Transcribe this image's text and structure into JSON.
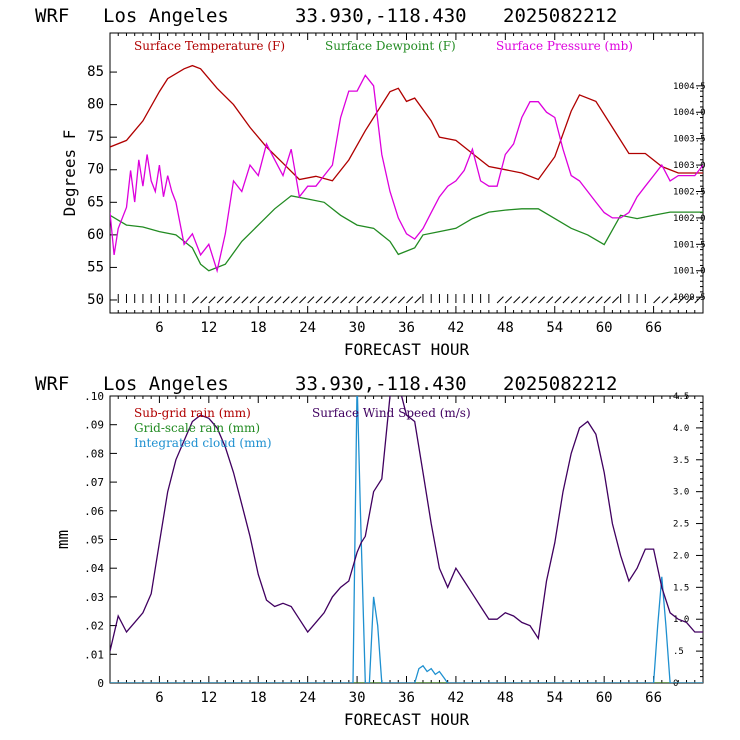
{
  "chart_data": [
    {
      "type": "line",
      "header": {
        "model": "WRF",
        "location": "Los Angeles",
        "coords": "33.930,-118.430",
        "run": "2025082212"
      },
      "xlabel": "FORECAST HOUR",
      "ylabel": "Degrees F",
      "x_ticks": [
        "6",
        "12",
        "18",
        "24",
        "30",
        "36",
        "42",
        "48",
        "54",
        "60",
        "66"
      ],
      "y_ticks": [
        "50",
        "55",
        "60",
        "65",
        "70",
        "75",
        "80",
        "85"
      ],
      "y2_ticks": [
        "1000.5",
        "1001.0",
        "1001.5",
        "1002.0",
        "1002.5",
        "1003.0",
        "1003.5",
        "1004.0",
        "1004.5"
      ],
      "xlim": [
        0,
        72
      ],
      "ylim": [
        48,
        91
      ],
      "y2lim": [
        1000.2,
        1005.5
      ],
      "series": [
        {
          "name": "Surface Temperature (F)",
          "color": "#b00000",
          "axis": "left",
          "x": [
            0,
            2,
            4,
            6,
            7,
            9,
            10,
            11,
            13,
            15,
            17,
            19,
            21,
            23,
            25,
            27,
            29,
            31,
            33,
            34,
            35,
            36,
            37,
            39,
            40,
            42,
            44,
            46,
            48,
            50,
            52,
            54,
            56,
            57,
            59,
            61,
            63,
            65,
            67,
            69,
            72
          ],
          "y": [
            73.5,
            74.5,
            77.5,
            82,
            84,
            85.5,
            86,
            85.5,
            82.5,
            80,
            76.5,
            73.5,
            71,
            68.5,
            69,
            68.3,
            71.5,
            76,
            80,
            82,
            82.5,
            80.5,
            81,
            77.5,
            75,
            74.5,
            72.5,
            70.5,
            70,
            69.5,
            68.5,
            72,
            79,
            81.5,
            80.5,
            76.5,
            72.5,
            72.5,
            70.5,
            69.5,
            69.5
          ]
        },
        {
          "name": "Surface Dewpoint (F)",
          "color": "#228b22",
          "axis": "left",
          "x": [
            0,
            2,
            4,
            6,
            8,
            10,
            11,
            12,
            14,
            16,
            18,
            20,
            22,
            24,
            26,
            28,
            30,
            32,
            34,
            35,
            36,
            37,
            38,
            40,
            42,
            44,
            46,
            48,
            50,
            52,
            54,
            56,
            58,
            60,
            62,
            64,
            66,
            68,
            72
          ],
          "y": [
            63,
            61.5,
            61.2,
            60.5,
            60,
            58,
            55.5,
            54.5,
            55.5,
            59,
            61.5,
            64,
            66,
            65.5,
            65,
            63,
            61.5,
            61,
            59,
            57,
            57.5,
            58,
            60,
            60.5,
            61,
            62.5,
            63.5,
            63.8,
            64,
            64,
            62.5,
            61,
            60,
            58.5,
            63,
            62.5,
            63,
            63.5,
            63.5
          ]
        },
        {
          "name": "Surface Pressure (mb)",
          "color": "#dd00dd",
          "axis": "right",
          "x": [
            0,
            0.5,
            1,
            2,
            2.5,
            3,
            3.5,
            4,
            4.5,
            5,
            5.5,
            6,
            6.5,
            7,
            7.5,
            8,
            9,
            10,
            11,
            12,
            13,
            14,
            15,
            16,
            17,
            18,
            19,
            20,
            21,
            22,
            23,
            24,
            25,
            26,
            27,
            28,
            29,
            30,
            31,
            32,
            33,
            34,
            35,
            36,
            37,
            38,
            39,
            40,
            41,
            42,
            43,
            44,
            45,
            46,
            47,
            48,
            49,
            50,
            51,
            52,
            53,
            54,
            55,
            56,
            57,
            58,
            59,
            60,
            61,
            62,
            63,
            64,
            65,
            66,
            67,
            68,
            69,
            70,
            71,
            72
          ],
          "y": [
            1002.1,
            1001.3,
            1001.8,
            1002.2,
            1002.9,
            1002.3,
            1003.1,
            1002.6,
            1003.2,
            1002.7,
            1002.5,
            1003.0,
            1002.4,
            1002.8,
            1002.5,
            1002.3,
            1001.5,
            1001.7,
            1001.3,
            1001.5,
            1001.0,
            1001.7,
            1002.7,
            1002.5,
            1003.0,
            1002.8,
            1003.4,
            1003.1,
            1002.8,
            1003.3,
            1002.4,
            1002.6,
            1002.6,
            1002.8,
            1003.0,
            1003.9,
            1004.4,
            1004.4,
            1004.7,
            1004.5,
            1003.2,
            1002.5,
            1002.0,
            1001.7,
            1001.6,
            1001.8,
            1002.1,
            1002.4,
            1002.6,
            1002.7,
            1002.9,
            1003.3,
            1002.7,
            1002.6,
            1002.6,
            1003.2,
            1003.4,
            1003.9,
            1004.2,
            1004.2,
            1004.0,
            1003.9,
            1003.3,
            1002.8,
            1002.7,
            1002.5,
            1002.3,
            1002.1,
            1002.0,
            1002.0,
            1002.1,
            1002.4,
            1002.6,
            1002.8,
            1003.0,
            1002.7,
            1002.8,
            1002.8,
            1002.8,
            1003.0
          ]
        }
      ]
    },
    {
      "type": "line",
      "header": {
        "model": "WRF",
        "location": "Los Angeles",
        "coords": "33.930,-118.430",
        "run": "2025082212"
      },
      "xlabel": "FORECAST HOUR",
      "ylabel": "mm",
      "x_ticks": [
        "6",
        "12",
        "18",
        "24",
        "30",
        "36",
        "42",
        "48",
        "54",
        "60",
        "66"
      ],
      "y_ticks": [
        "0",
        ".01",
        ".02",
        ".03",
        ".04",
        ".05",
        ".06",
        ".07",
        ".08",
        ".09",
        ".10"
      ],
      "y2_ticks": [
        "0",
        ".5",
        "1.0",
        "1.5",
        "2.0",
        "2.5",
        "3.0",
        "3.5",
        "4.0",
        "4.5"
      ],
      "xlim": [
        0,
        72
      ],
      "ylim": [
        0,
        0.1
      ],
      "y2lim": [
        0,
        4.5
      ],
      "series": [
        {
          "name": "Sub-grid rain (mm)",
          "color": "#b00000",
          "axis": "left",
          "x": [
            0,
            72
          ],
          "y": [
            0,
            0
          ]
        },
        {
          "name": "Grid-scale rain (mm)",
          "color": "#228b22",
          "axis": "left",
          "x": [
            0,
            72
          ],
          "y": [
            0,
            0
          ]
        },
        {
          "name": "Integrated cloud (mm)",
          "color": "#1e90d0",
          "axis": "left",
          "x": [
            0,
            29.5,
            30,
            30.4,
            31,
            31.5,
            32,
            32.5,
            33,
            33.5,
            34,
            36,
            37,
            37.5,
            38,
            38.5,
            39,
            39.5,
            40,
            40.5,
            41,
            66,
            66.5,
            67,
            67.5,
            68,
            72
          ],
          "y": [
            0,
            0,
            0.105,
            0.06,
            0,
            0,
            0.03,
            0.02,
            0,
            0,
            0,
            0,
            0,
            0.005,
            0.006,
            0.004,
            0.005,
            0.003,
            0.004,
            0.002,
            0,
            0,
            0.02,
            0.037,
            0.02,
            0,
            0
          ]
        },
        {
          "name": "Surface Wind Speed (m/s)",
          "color": "#400060",
          "axis": "right",
          "x": [
            0,
            1,
            2,
            3,
            4,
            5,
            6,
            7,
            8,
            9,
            10,
            11,
            12,
            13,
            14,
            15,
            16,
            17,
            18,
            19,
            20,
            21,
            22,
            23,
            24,
            25,
            26,
            27,
            28,
            29,
            30,
            30.5,
            31,
            32,
            33,
            34,
            34.5,
            35,
            36,
            37,
            38,
            39,
            40,
            41,
            42,
            43,
            44,
            45,
            46,
            47,
            48,
            49,
            50,
            51,
            52,
            53,
            54,
            55,
            56,
            57,
            58,
            59,
            60,
            61,
            62,
            63,
            64,
            65,
            66,
            67,
            68,
            69,
            70,
            71,
            72
          ],
          "y": [
            0.5,
            1.05,
            0.8,
            0.95,
            1.1,
            1.4,
            2.2,
            3.0,
            3.5,
            3.8,
            4.1,
            4.2,
            4.15,
            4.0,
            3.7,
            3.3,
            2.8,
            2.3,
            1.7,
            1.3,
            1.2,
            1.25,
            1.2,
            1.0,
            0.8,
            0.95,
            1.1,
            1.35,
            1.5,
            1.6,
            2.05,
            2.2,
            2.3,
            3.0,
            3.2,
            4.5,
            4.9,
            4.7,
            4.2,
            4.1,
            3.3,
            2.5,
            1.8,
            1.5,
            1.8,
            1.6,
            1.4,
            1.2,
            1.0,
            1.0,
            1.1,
            1.05,
            0.95,
            0.9,
            0.7,
            1.6,
            2.2,
            3.0,
            3.6,
            4.0,
            4.1,
            3.9,
            3.3,
            2.5,
            2.0,
            1.6,
            1.8,
            2.1,
            2.1,
            1.5,
            1.1,
            1.0,
            0.95,
            0.8,
            0.8
          ]
        }
      ]
    }
  ]
}
